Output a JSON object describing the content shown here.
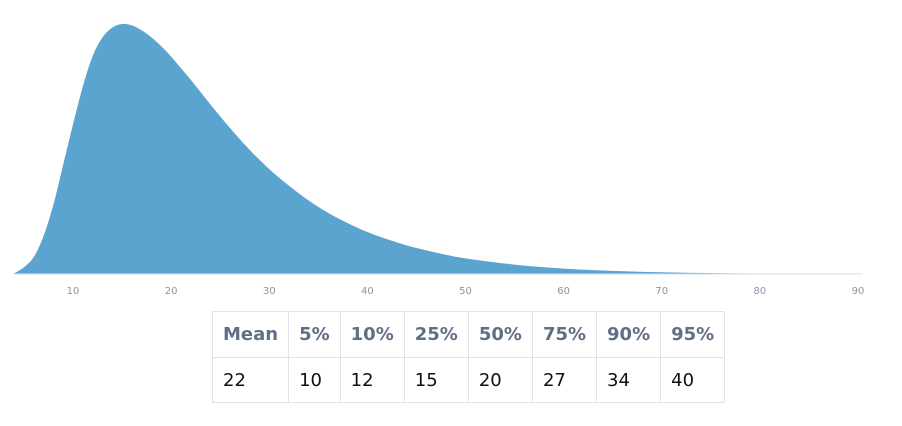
{
  "chart_data": {
    "type": "area",
    "title": "",
    "xlabel": "",
    "ylabel": "",
    "xlim": [
      4,
      90
    ],
    "ylim": [
      0,
      0.056
    ],
    "x_ticks": [
      "10",
      "20",
      "30",
      "40",
      "50",
      "60",
      "70",
      "80",
      "90"
    ],
    "grid": false,
    "color": "#5ba4d0",
    "series": [
      {
        "x": [
          4,
          5,
          6,
          7,
          8,
          9,
          10,
          11,
          12,
          13,
          14,
          15,
          16,
          17,
          18,
          19,
          20,
          22,
          24,
          26,
          28,
          30,
          32,
          34,
          36,
          38,
          40,
          42,
          44,
          46,
          48,
          50,
          55,
          60,
          65,
          70,
          75,
          80,
          85,
          90
        ],
        "values": [
          0.0001,
          0.0015,
          0.0038,
          0.0085,
          0.0155,
          0.0245,
          0.0335,
          0.042,
          0.0488,
          0.053,
          0.0552,
          0.056,
          0.0557,
          0.0546,
          0.053,
          0.051,
          0.0487,
          0.0435,
          0.038,
          0.0327,
          0.0278,
          0.0235,
          0.0198,
          0.0165,
          0.0137,
          0.0114,
          0.0094,
          0.0078,
          0.0064,
          0.0053,
          0.0043,
          0.0035,
          0.0021,
          0.0012,
          0.0007,
          0.0004,
          0.0002,
          0.0001,
          5e-05,
          2e-05
        ]
      }
    ]
  },
  "table": {
    "headers": [
      "Mean",
      "5%",
      "10%",
      "25%",
      "50%",
      "75%",
      "90%",
      "95%"
    ],
    "values": [
      "22",
      "10",
      "12",
      "15",
      "20",
      "27",
      "34",
      "40"
    ]
  }
}
